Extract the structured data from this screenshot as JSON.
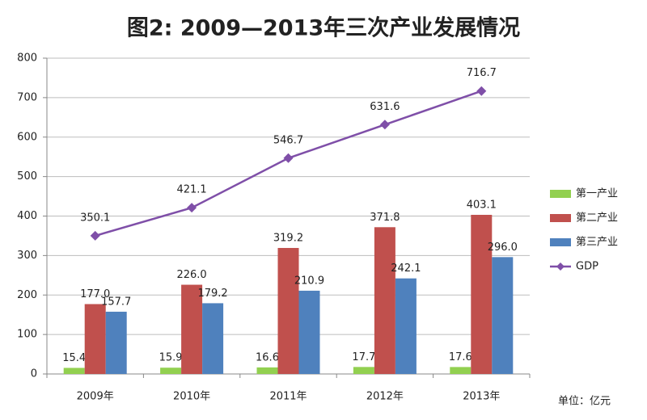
{
  "chart_data": {
    "type": "bar",
    "title": "图2:  2009—2013年三次产业发展情况",
    "note": "单位：亿元",
    "categories": [
      "2009年",
      "2010年",
      "2011年",
      "2012年",
      "2013年"
    ],
    "series": [
      {
        "name": "第一产业",
        "type": "bar",
        "color": "#92d050",
        "values": [
          15.4,
          15.9,
          16.6,
          17.7,
          17.6
        ]
      },
      {
        "name": "第二产业",
        "type": "bar",
        "color": "#c0504d",
        "values": [
          177,
          226,
          319.2,
          371.8,
          403.1
        ],
        "value_labels": [
          "177.0",
          "226.0",
          "319.2",
          "371.8",
          "403.1"
        ]
      },
      {
        "name": "第三产业",
        "type": "bar",
        "color": "#4f81bd",
        "values": [
          157.7,
          179.2,
          210.9,
          242.1,
          296
        ],
        "value_labels": [
          "157.7",
          "179.2",
          "210.9",
          "242.1",
          "296.0"
        ]
      },
      {
        "name": "GDP",
        "type": "line",
        "color": "#7f4fa8",
        "values": [
          350.1,
          421.1,
          546.7,
          631.6,
          716.7
        ]
      }
    ],
    "ylim": [
      0,
      800
    ],
    "yticks": [
      0,
      100,
      200,
      300,
      400,
      500,
      600,
      700,
      800
    ],
    "grid": true,
    "legend": "right"
  }
}
